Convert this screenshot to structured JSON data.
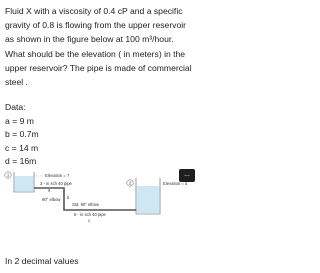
{
  "problem": {
    "text": "Fluid X with a viscosity of 0.4 cP and a specific gravity of 0.8 is flowing from the upper reservoir as shown in the figure below at 100 m³/hour. What should be the elevation ( in meters) in the upper reservoir? The pipe is made of commercial steel .",
    "data_heading": "Data:",
    "data": [
      "a = 9 m",
      "b = 0.7m",
      "c = 14 m",
      "d = 16m"
    ],
    "note": "In 2 decimal values"
  },
  "figure": {
    "point_1": "1",
    "point_2": "2",
    "elevation_1": "Elevation = ?",
    "pipe_1": "3 - in sch 40 pipe",
    "label_a": "a",
    "elbow": "90° elbow",
    "label_b": "b",
    "std_elbow": "Std. 90° elbow",
    "pipe_2": "5 - in sch 40 pipe",
    "label_c": "c",
    "elevation_2": "Elevation = d",
    "more": "..."
  }
}
